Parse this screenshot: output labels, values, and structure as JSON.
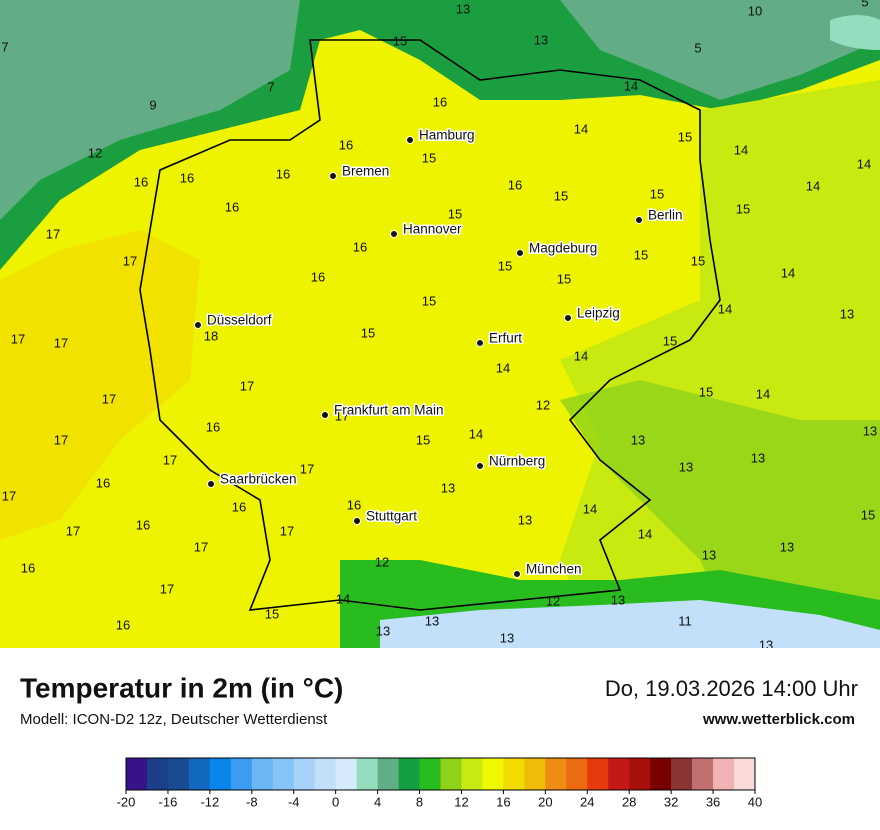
{
  "map": {
    "cities": [
      "Hamburg",
      "Bremen",
      "Hannover",
      "Berlin",
      "Magdeburg",
      "Düsseldorf",
      "Leipzig",
      "Erfurt",
      "Frankfurt am Main",
      "Nürnberg",
      "Saarbrücken",
      "Stuttgart",
      "München"
    ],
    "temperatures": [
      7,
      13,
      10,
      5,
      15,
      13,
      5,
      9,
      7,
      16,
      14,
      14,
      15,
      14,
      14,
      12,
      16,
      15,
      16,
      16,
      16,
      16,
      15,
      15,
      14,
      16,
      15,
      15,
      17,
      16,
      17,
      15,
      15,
      15,
      15,
      14,
      16,
      15,
      14,
      13,
      15,
      18,
      17,
      17,
      14,
      15,
      14,
      17,
      17,
      15,
      14,
      12,
      17,
      16,
      14,
      15,
      13,
      13,
      17,
      17,
      17,
      13,
      13,
      17,
      16,
      13,
      16,
      16,
      14,
      16,
      13,
      15,
      17,
      17,
      14,
      17,
      13,
      13,
      12,
      16,
      17,
      14,
      12,
      13,
      15,
      16,
      13,
      11,
      13,
      13,
      13
    ]
  },
  "legend": {
    "title": "Temperatur in 2m (in °C)",
    "subtitle": "Modell: ICON-D2 12z, Deutscher Wetterdienst",
    "date": "Do, 19.03.2026 14:00 Uhr",
    "website": "www.wetterblick.com",
    "colorbar": {
      "ticks": [
        -20,
        -16,
        -12,
        -8,
        -4,
        0,
        4,
        8,
        12,
        16,
        20,
        24,
        28,
        32,
        36,
        40
      ],
      "colors": [
        "#38128a",
        "#1c3f8a",
        "#1a4a90",
        "#1268bf",
        "#0a86ea",
        "#3a9cf2",
        "#6cb6f4",
        "#86c3f6",
        "#a8d3f8",
        "#c2e0fa",
        "#d6eafb",
        "#96dcbe",
        "#60ae86",
        "#14a042",
        "#28bc1e",
        "#8ed21a",
        "#c8ea10",
        "#f0f800",
        "#f2dc00",
        "#f0bc0a",
        "#ee8c14",
        "#ec6a12",
        "#e43a0c",
        "#c41818",
        "#a8100e",
        "#7a0000",
        "#8a3434",
        "#c07070",
        "#f0b2b2",
        "#fcdada"
      ]
    }
  }
}
